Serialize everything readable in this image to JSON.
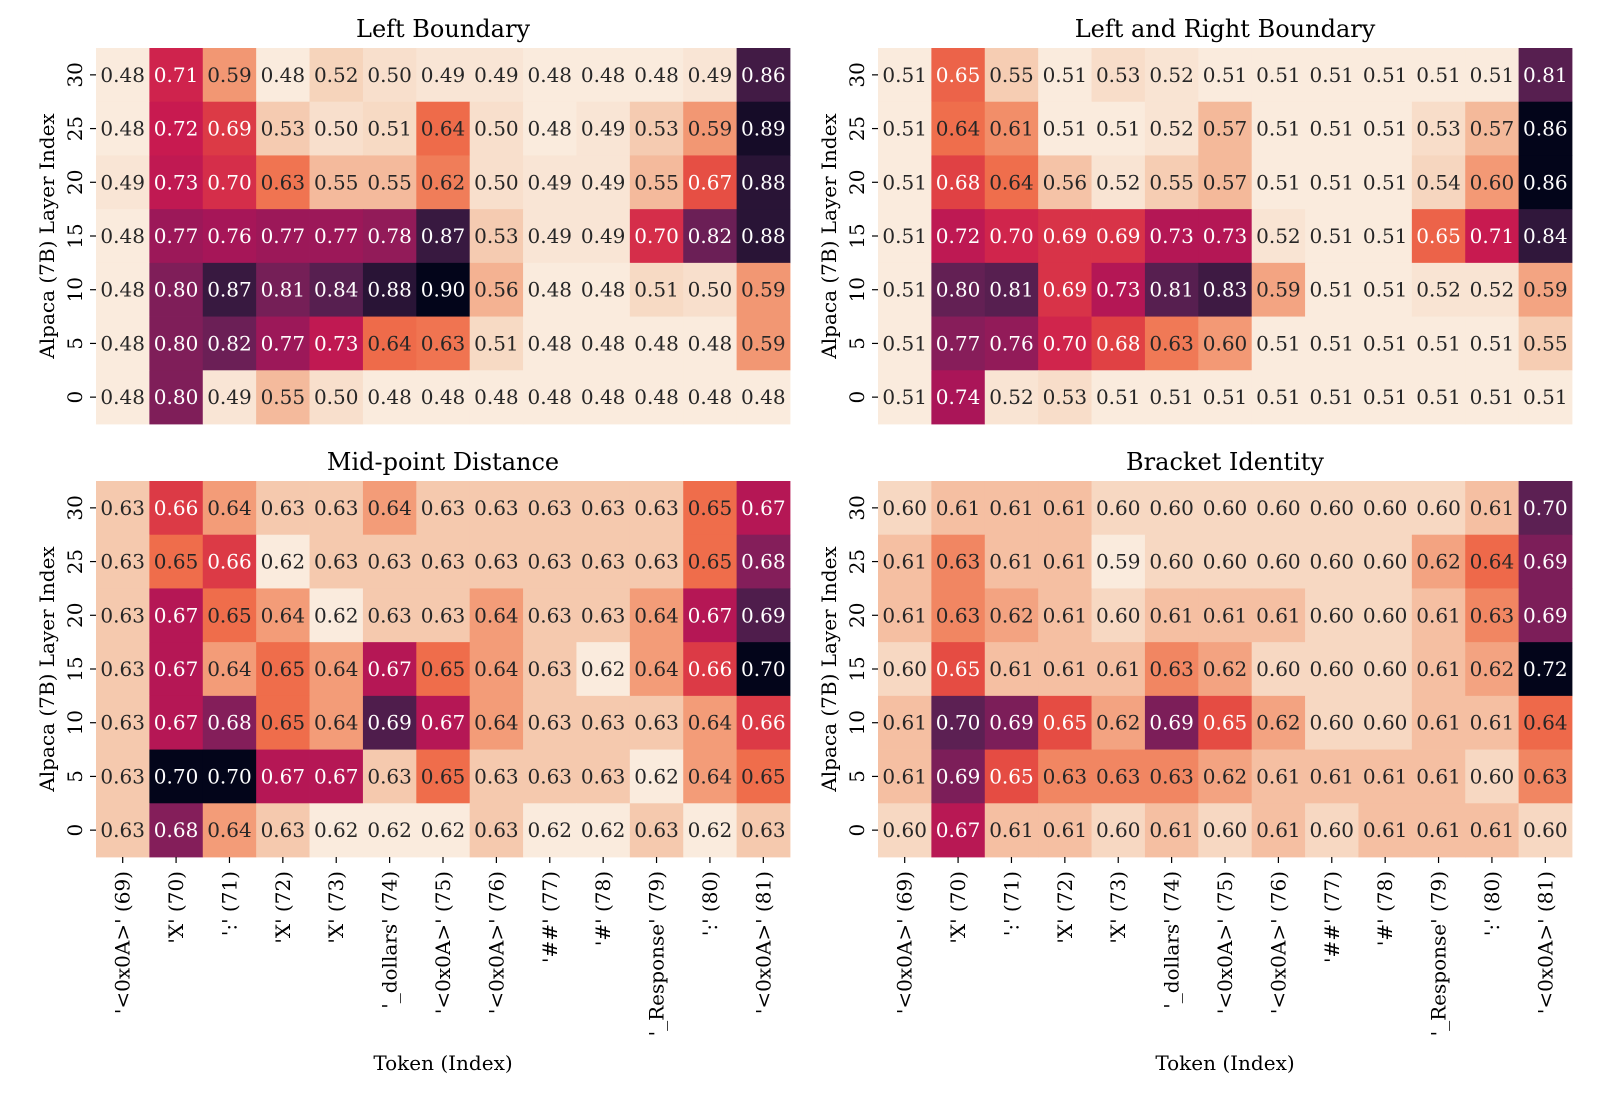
{
  "chart_data": [
    {
      "type": "heatmap",
      "title": "Left Boundary",
      "xlabel": "",
      "ylabel": "Alpaca (7B) Layer Index",
      "x_categories": [
        "'<0x0A>' (69)",
        "'X' (70)",
        "':' (71)",
        "'X' (72)",
        "'X' (73)",
        "'_dollars' (74)",
        "'<0x0A>' (75)",
        "'<0x0A>' (76)",
        "'##' (77)",
        "'#' (78)",
        "'_Response' (79)",
        "':' (80)",
        "'<0x0A>' (81)"
      ],
      "y_categories": [
        "30",
        "25",
        "20",
        "15",
        "10",
        "5",
        "0"
      ],
      "values": [
        [
          0.48,
          0.71,
          0.59,
          0.48,
          0.52,
          0.5,
          0.49,
          0.49,
          0.48,
          0.48,
          0.48,
          0.49,
          0.86
        ],
        [
          0.48,
          0.72,
          0.69,
          0.53,
          0.5,
          0.51,
          0.64,
          0.5,
          0.48,
          0.49,
          0.53,
          0.59,
          0.89
        ],
        [
          0.49,
          0.73,
          0.7,
          0.63,
          0.55,
          0.55,
          0.62,
          0.5,
          0.49,
          0.49,
          0.55,
          0.67,
          0.88
        ],
        [
          0.48,
          0.77,
          0.76,
          0.77,
          0.77,
          0.78,
          0.87,
          0.53,
          0.49,
          0.49,
          0.7,
          0.82,
          0.88
        ],
        [
          0.48,
          0.8,
          0.87,
          0.81,
          0.84,
          0.88,
          0.9,
          0.56,
          0.48,
          0.48,
          0.51,
          0.5,
          0.59
        ],
        [
          0.48,
          0.8,
          0.82,
          0.77,
          0.73,
          0.64,
          0.63,
          0.51,
          0.48,
          0.48,
          0.48,
          0.48,
          0.59
        ],
        [
          0.48,
          0.8,
          0.49,
          0.55,
          0.5,
          0.48,
          0.48,
          0.48,
          0.48,
          0.48,
          0.48,
          0.48,
          0.48
        ]
      ],
      "colormap": "rocket_r"
    },
    {
      "type": "heatmap",
      "title": "Left and Right Boundary",
      "xlabel": "",
      "ylabel": "Alpaca (7B) Layer Index",
      "x_categories": [
        "'<0x0A>' (69)",
        "'X' (70)",
        "':' (71)",
        "'X' (72)",
        "'X' (73)",
        "'_dollars' (74)",
        "'<0x0A>' (75)",
        "'<0x0A>' (76)",
        "'##' (77)",
        "'#' (78)",
        "'_Response' (79)",
        "':' (80)",
        "'<0x0A>' (81)"
      ],
      "y_categories": [
        "30",
        "25",
        "20",
        "15",
        "10",
        "5",
        "0"
      ],
      "values": [
        [
          0.51,
          0.65,
          0.55,
          0.51,
          0.53,
          0.52,
          0.51,
          0.51,
          0.51,
          0.51,
          0.51,
          0.51,
          0.81
        ],
        [
          0.51,
          0.64,
          0.61,
          0.51,
          0.51,
          0.52,
          0.57,
          0.51,
          0.51,
          0.51,
          0.53,
          0.57,
          0.86
        ],
        [
          0.51,
          0.68,
          0.64,
          0.56,
          0.52,
          0.55,
          0.57,
          0.51,
          0.51,
          0.51,
          0.54,
          0.6,
          0.86
        ],
        [
          0.51,
          0.72,
          0.7,
          0.69,
          0.69,
          0.73,
          0.73,
          0.52,
          0.51,
          0.51,
          0.65,
          0.71,
          0.84
        ],
        [
          0.51,
          0.8,
          0.81,
          0.69,
          0.73,
          0.81,
          0.83,
          0.59,
          0.51,
          0.51,
          0.52,
          0.52,
          0.59
        ],
        [
          0.51,
          0.77,
          0.76,
          0.7,
          0.68,
          0.63,
          0.6,
          0.51,
          0.51,
          0.51,
          0.51,
          0.51,
          0.55
        ],
        [
          0.51,
          0.74,
          0.52,
          0.53,
          0.51,
          0.51,
          0.51,
          0.51,
          0.51,
          0.51,
          0.51,
          0.51,
          0.51
        ]
      ],
      "colormap": "rocket_r"
    },
    {
      "type": "heatmap",
      "title": "Mid-point Distance",
      "xlabel": "Token (Index)",
      "ylabel": "Alpaca (7B) Layer Index",
      "x_categories": [
        "'<0x0A>' (69)",
        "'X' (70)",
        "':' (71)",
        "'X' (72)",
        "'X' (73)",
        "'_dollars' (74)",
        "'<0x0A>' (75)",
        "'<0x0A>' (76)",
        "'##' (77)",
        "'#' (78)",
        "'_Response' (79)",
        "':' (80)",
        "'<0x0A>' (81)"
      ],
      "y_categories": [
        "30",
        "25",
        "20",
        "15",
        "10",
        "5",
        "0"
      ],
      "values": [
        [
          0.63,
          0.66,
          0.64,
          0.63,
          0.63,
          0.64,
          0.63,
          0.63,
          0.63,
          0.63,
          0.63,
          0.65,
          0.67
        ],
        [
          0.63,
          0.65,
          0.66,
          0.62,
          0.63,
          0.63,
          0.63,
          0.63,
          0.63,
          0.63,
          0.63,
          0.65,
          0.68
        ],
        [
          0.63,
          0.67,
          0.65,
          0.64,
          0.62,
          0.63,
          0.63,
          0.64,
          0.63,
          0.63,
          0.64,
          0.67,
          0.69
        ],
        [
          0.63,
          0.67,
          0.64,
          0.65,
          0.64,
          0.67,
          0.65,
          0.64,
          0.63,
          0.62,
          0.64,
          0.66,
          0.7
        ],
        [
          0.63,
          0.67,
          0.68,
          0.65,
          0.64,
          0.69,
          0.67,
          0.64,
          0.63,
          0.63,
          0.63,
          0.64,
          0.66
        ],
        [
          0.63,
          0.7,
          0.7,
          0.67,
          0.67,
          0.63,
          0.65,
          0.63,
          0.63,
          0.63,
          0.62,
          0.64,
          0.65
        ],
        [
          0.63,
          0.68,
          0.64,
          0.63,
          0.62,
          0.62,
          0.62,
          0.63,
          0.62,
          0.62,
          0.63,
          0.62,
          0.63
        ]
      ],
      "colormap": "rocket_r"
    },
    {
      "type": "heatmap",
      "title": "Bracket Identity",
      "xlabel": "Token (Index)",
      "ylabel": "Alpaca (7B) Layer Index",
      "x_categories": [
        "'<0x0A>' (69)",
        "'X' (70)",
        "':' (71)",
        "'X' (72)",
        "'X' (73)",
        "'_dollars' (74)",
        "'<0x0A>' (75)",
        "'<0x0A>' (76)",
        "'##' (77)",
        "'#' (78)",
        "'_Response' (79)",
        "':' (80)",
        "'<0x0A>' (81)"
      ],
      "y_categories": [
        "30",
        "25",
        "20",
        "15",
        "10",
        "5",
        "0"
      ],
      "values": [
        [
          0.6,
          0.61,
          0.61,
          0.61,
          0.6,
          0.6,
          0.6,
          0.6,
          0.6,
          0.6,
          0.6,
          0.61,
          0.7
        ],
        [
          0.61,
          0.63,
          0.61,
          0.61,
          0.59,
          0.6,
          0.6,
          0.6,
          0.6,
          0.6,
          0.62,
          0.64,
          0.69
        ],
        [
          0.61,
          0.63,
          0.62,
          0.61,
          0.6,
          0.61,
          0.61,
          0.61,
          0.6,
          0.6,
          0.61,
          0.63,
          0.69
        ],
        [
          0.6,
          0.65,
          0.61,
          0.61,
          0.61,
          0.63,
          0.62,
          0.6,
          0.6,
          0.6,
          0.61,
          0.62,
          0.72
        ],
        [
          0.61,
          0.7,
          0.69,
          0.65,
          0.62,
          0.69,
          0.65,
          0.62,
          0.6,
          0.6,
          0.61,
          0.61,
          0.64
        ],
        [
          0.61,
          0.69,
          0.65,
          0.63,
          0.63,
          0.63,
          0.62,
          0.61,
          0.61,
          0.61,
          0.61,
          0.6,
          0.63
        ],
        [
          0.6,
          0.67,
          0.61,
          0.61,
          0.6,
          0.61,
          0.6,
          0.61,
          0.6,
          0.61,
          0.61,
          0.61,
          0.6
        ]
      ],
      "colormap": "rocket_r"
    }
  ]
}
